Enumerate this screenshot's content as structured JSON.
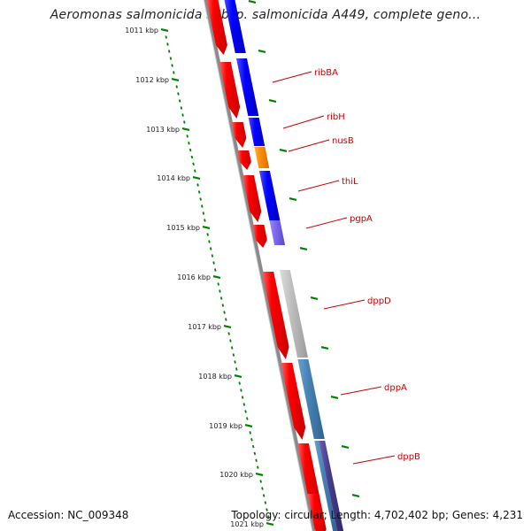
{
  "title": "Aeromonas salmonicida subsp. salmonicida A449, complete geno...",
  "footer": {
    "accession": "Accession: NC_009348",
    "stats": "Topology: circular; Length: 4,702,402 bp; Genes: 4,231"
  },
  "axis_labels": [
    "1011 kbp",
    "1012 kbp",
    "1013 kbp",
    "1014 kbp",
    "1015 kbp",
    "1016 kbp",
    "1017 kbp",
    "1018 kbp",
    "1019 kbp",
    "1020 kbp",
    "1021 kbp"
  ],
  "gene_labels": [
    "ribBA",
    "ribH",
    "nusB",
    "thiL",
    "pgpA",
    "dppD",
    "dppA",
    "dppB"
  ],
  "colors": {
    "reverse_strand_cds": "#ff0000",
    "ribBA": "#0000ff",
    "ribH": "#0000ff",
    "nusB": "#ff8c00",
    "thiL": "#0000ff",
    "pgpA": "#7b68ee",
    "dppD": "#c0c0c0",
    "dppA": "#4682b4",
    "dppB": "#483d8b",
    "backbone": "#808080",
    "gc_skew_ticks": "#008000",
    "label": "#cc0000"
  }
}
